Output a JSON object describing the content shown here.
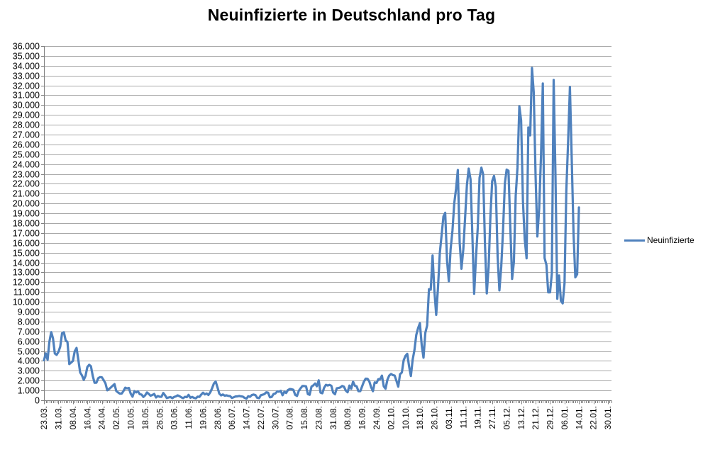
{
  "chart_data": {
    "type": "line",
    "title": "Neuinfizierte in Deutschland pro Tag",
    "legend": [
      "Neuinfizierte"
    ],
    "legend_position": "right",
    "grid": true,
    "line_color": "#4F81BD",
    "gridline_color": "#A8A8A8",
    "axis_color": "#7F7F7F",
    "text_color": "#000000",
    "xlabel": "",
    "ylabel": "",
    "ylim": [
      0,
      36000
    ],
    "y_step": 1000,
    "y_tick_labels": [
      "36.000",
      "35.000",
      "34.000",
      "33.000",
      "32.000",
      "31.000",
      "30.000",
      "29.000",
      "28.000",
      "27.000",
      "26.000",
      "25.000",
      "24.000",
      "23.000",
      "22.000",
      "21.000",
      "20.000",
      "19.000",
      "18.000",
      "17.000",
      "16.000",
      "15.000",
      "14.000",
      "13.000",
      "12.000",
      "11.000",
      "10.000",
      "9.000",
      "8.000",
      "7.000",
      "6.000",
      "5.000",
      "4.000",
      "3.000",
      "2.000",
      "1.000",
      "0"
    ],
    "x_tick_labels": [
      "23.03.",
      "31.03.",
      "08.04.",
      "16.04.",
      "24.04.",
      "02.05.",
      "10.05.",
      "18.05.",
      "26.05.",
      "03.06.",
      "11.06.",
      "19.06.",
      "28.06.",
      "06.07.",
      "14.07.",
      "22.07.",
      "30.07.",
      "07.08.",
      "15.08.",
      "23.08.",
      "31.08.",
      "08.09.",
      "16.09.",
      "24.09.",
      "02.10.",
      "10.10.",
      "18.10.",
      "26.10.",
      "03.11.",
      "11.11.",
      "19.11.",
      "27.11.",
      "05.12.",
      "13.12.",
      "21.12.",
      "29.12.",
      "06.01.",
      "14.01.",
      "22.01.",
      "30.01."
    ],
    "x_label_every": 8,
    "x_total_slots": 314,
    "series": [
      {
        "name": "Neuinfizierte",
        "values": [
          4062,
          4764,
          4118,
          5940,
          6933,
          6294,
          4751,
          4615,
          4923,
          5453,
          6813,
          6922,
          6082,
          5936,
          3677,
          3834,
          4003,
          4974,
          5323,
          4133,
          2821,
          2537,
          2082,
          2486,
          3380,
          3609,
          3459,
          2458,
          1775,
          1785,
          2237,
          2352,
          2337,
          2055,
          1737,
          1018,
          1144,
          1304,
          1478,
          1639,
          945,
          793,
          679,
          685,
          947,
          1284,
          1209,
          1251,
          667,
          357,
          933,
          798,
          913,
          620,
          583,
          342,
          513,
          797,
          639,
          460,
          548,
          638,
          289,
          432,
          362,
          353,
          741,
          507,
          221,
          286,
          333,
          213,
          342,
          394,
          507,
          407,
          301,
          214,
          350,
          318,
          555,
          258,
          348,
          247,
          192,
          378,
          345,
          580,
          770,
          601,
          687,
          537,
          803,
          1207,
          1706,
          1906,
          1311,
          687,
          498,
          587,
          466,
          503,
          446,
          422,
          239,
          312,
          390,
          397,
          442,
          395,
          378,
          248,
          159,
          412,
          351,
          534,
          583,
          529,
          249,
          216,
          522,
          569,
          632,
          815,
          781,
          305,
          340,
          633,
          684,
          902,
          870,
          955,
          509,
          879,
          741,
          1045,
          1147,
          1122,
          1063,
          555,
          436,
          966,
          1226,
          1445,
          1449,
          1415,
          625,
          561,
          1390,
          1510,
          1707,
          1427,
          2034,
          782,
          711,
          1278,
          1576,
          1507,
          1571,
          1479,
          785,
          610,
          1218,
          1256,
          1311,
          1453,
          1378,
          988,
          814,
          1499,
          1176,
          1892,
          1484,
          1412,
          920,
          927,
          1407,
          1901,
          2194,
          2179,
          1916,
          1337,
          922,
          1821,
          1769,
          2143,
          2153,
          2507,
          1411,
          1176,
          2089,
          2503,
          2673,
          2563,
          2519,
          1986,
          1382,
          2639,
          2828,
          4058,
          4516,
          4721,
          3483,
          2467,
          4122,
          5132,
          6638,
          7334,
          7830,
          5587,
          4325,
          6868,
          7595,
          11287,
          11242,
          14714,
          11176,
          8685,
          11409,
          14964,
          16774,
          18681,
          19059,
          14177,
          12097,
          15352,
          17214,
          19990,
          21506,
          23399,
          16017,
          13363,
          15332,
          18487,
          21866,
          23542,
          22461,
          16947,
          10824,
          14419,
          17561,
          22609,
          23648,
          22964,
          15741,
          10864,
          13554,
          18633,
          22268,
          22806,
          21695,
          14611,
          11169,
          13604,
          17270,
          22046,
          23449,
          23318,
          17767,
          12332,
          14054,
          20815,
          23679,
          29875,
          28438,
          20200,
          16362,
          14432,
          27728,
          26923,
          33777,
          31300,
          22771,
          16643,
          19528,
          24740,
          32195,
          14455,
          13755,
          10976,
          10976,
          12892,
          32552,
          22924,
          10315,
          12690,
          10100,
          9847,
          11897,
          21237,
          26391,
          31849,
          24694,
          16946,
          12497,
          12802,
          19600
        ]
      }
    ]
  }
}
